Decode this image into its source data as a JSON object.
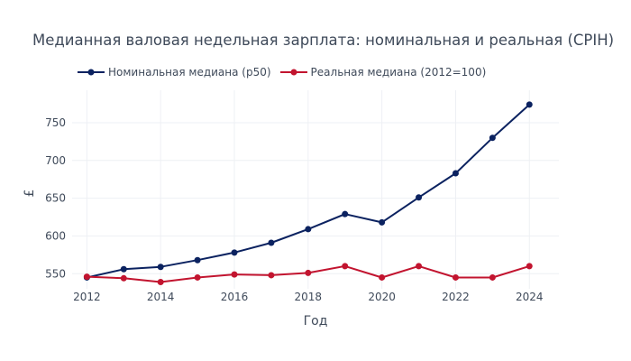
{
  "chart_data": {
    "type": "line",
    "title": "Медианная валовая недельная зарплата: номинальная и реальная (CPIH)",
    "xlabel": "Год",
    "ylabel": "£",
    "x": [
      2012,
      2013,
      2014,
      2015,
      2016,
      2017,
      2018,
      2019,
      2020,
      2021,
      2022,
      2023,
      2024
    ],
    "xticks": [
      2012,
      2014,
      2016,
      2018,
      2020,
      2022,
      2024
    ],
    "yticks": [
      550,
      600,
      650,
      700,
      750
    ],
    "xlim": [
      2011.6,
      2024.8
    ],
    "ylim": [
      530,
      793
    ],
    "grid": true,
    "legend_position": "top-left",
    "series": [
      {
        "name": "Номинальная медиана (p50)",
        "color": "#0b2260",
        "values": [
          545,
          556,
          559,
          568,
          578,
          591,
          609,
          629,
          618,
          651,
          683,
          730,
          774
        ]
      },
      {
        "name": "Реальная медиана (2012=100)",
        "color": "#c2142f",
        "values": [
          546,
          544,
          539,
          545,
          549,
          548,
          551,
          560,
          545,
          560,
          545,
          545,
          560
        ]
      }
    ]
  }
}
